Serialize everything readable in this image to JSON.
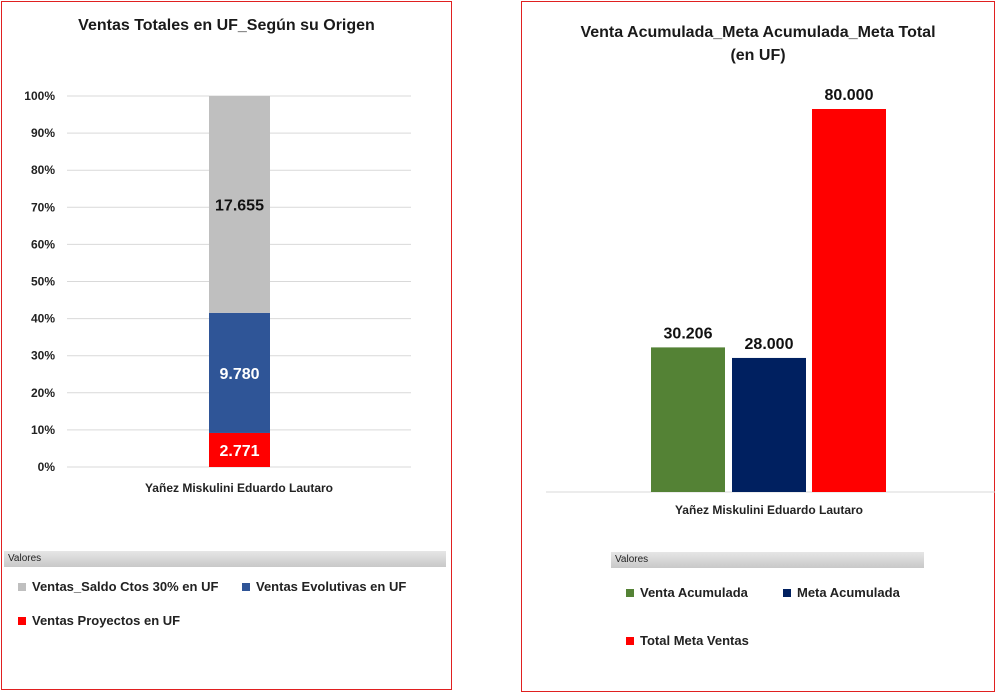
{
  "charts": [
    {
      "title": "Ventas Totales en UF_Según su Origen",
      "legend_header": "Valores"
    },
    {
      "title_line1": "Venta Acumulada_Meta Acumulada_Meta Total",
      "title_line2": "(en UF)",
      "legend_header": "Valores"
    }
  ],
  "chart_data": [
    {
      "type": "bar",
      "stacked": "percent",
      "title": "Ventas Totales en UF_Según su Origen",
      "categories": [
        "Yañez Miskulini Eduardo Lautaro"
      ],
      "y_ticks": [
        "0%",
        "10%",
        "20%",
        "30%",
        "40%",
        "50%",
        "60%",
        "70%",
        "80%",
        "90%",
        "100%"
      ],
      "ylim": [
        0,
        100
      ],
      "grid": true,
      "legend_position": "bottom",
      "series": [
        {
          "name": "Ventas Proyectos en UF",
          "values": [
            2771
          ],
          "label": "2.771",
          "color": "#ff0000",
          "label_color": "#ffffff"
        },
        {
          "name": "Ventas Evolutivas en UF",
          "values": [
            9780
          ],
          "label": "9.780",
          "color": "#2f5597",
          "label_color": "#ffffff"
        },
        {
          "name": "Ventas_Saldo Ctos 30% en UF",
          "values": [
            17655
          ],
          "label": "17.655",
          "color": "#bfbfbf",
          "label_color": "#111111"
        }
      ],
      "legend_order": [
        "Ventas_Saldo Ctos 30% en UF",
        "Ventas Evolutivas en UF",
        "Ventas Proyectos en UF"
      ]
    },
    {
      "type": "bar",
      "title": "Venta Acumulada_Meta Acumulada_Meta Total (en UF)",
      "categories": [
        "Yañez Miskulini Eduardo Lautaro"
      ],
      "grid": false,
      "legend_position": "bottom",
      "series": [
        {
          "name": "Venta Acumulada",
          "values": [
            30206
          ],
          "label": "30.206",
          "color": "#548235"
        },
        {
          "name": "Meta Acumulada",
          "values": [
            28000
          ],
          "label": "28.000",
          "color": "#002060"
        },
        {
          "name": "Total Meta Ventas",
          "values": [
            80000
          ],
          "label": "80.000",
          "color": "#ff0000"
        }
      ]
    }
  ]
}
